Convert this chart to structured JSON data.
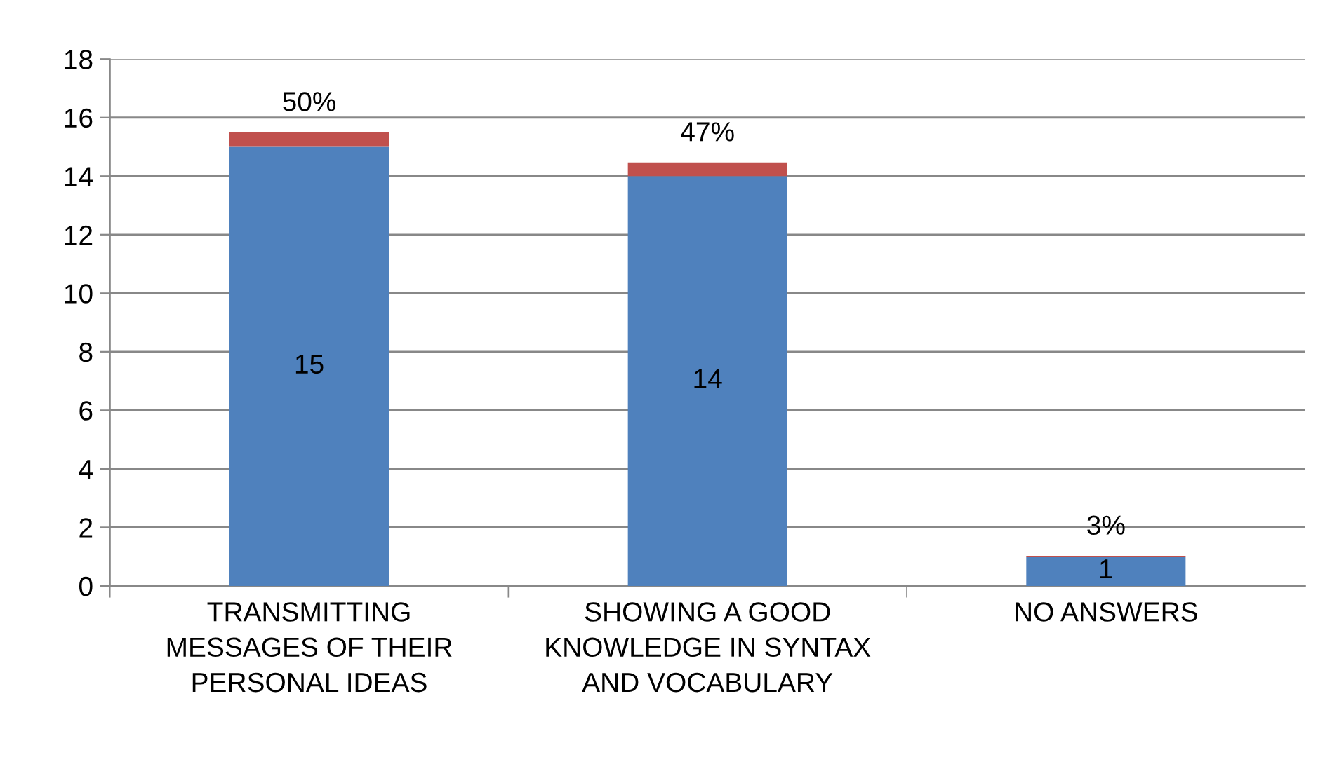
{
  "chart_data": {
    "type": "bar",
    "stacked": true,
    "categories": [
      "TRANSMITTING\nMESSAGES OF THEIR\nPERSONAL IDEAS",
      "SHOWING A GOOD\nKNOWLEDGE IN SYNTAX\nAND VOCABULARY",
      "NO ANSWERS"
    ],
    "series": [
      {
        "color": "#4f81bd",
        "values": [
          15,
          14,
          1
        ],
        "value_labels": [
          "15",
          "14",
          "1"
        ]
      },
      {
        "color": "#c0504d",
        "values": [
          0.5,
          0.47,
          0.03
        ],
        "value_labels": [
          "50%",
          "47%",
          "3%"
        ]
      }
    ],
    "ylim": [
      0,
      18
    ],
    "yticks": [
      0,
      2,
      4,
      6,
      8,
      10,
      12,
      14,
      16,
      18
    ],
    "grid": "y"
  }
}
